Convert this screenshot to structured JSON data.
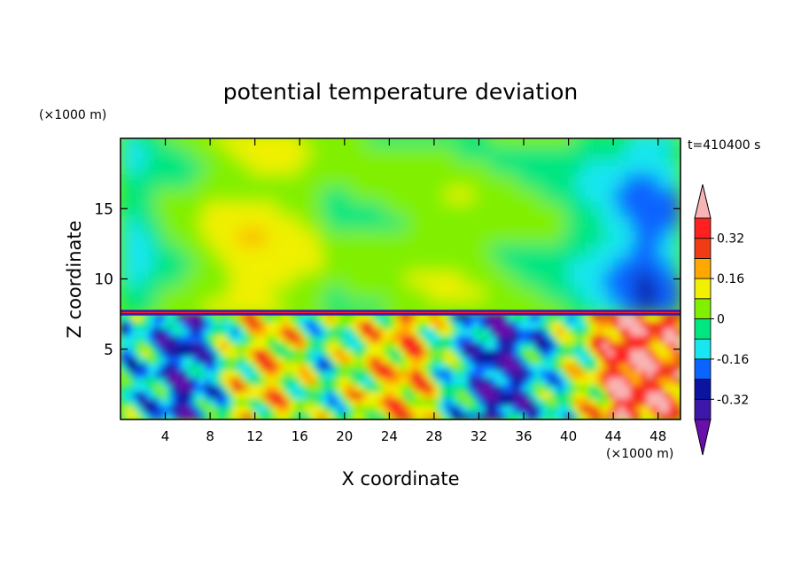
{
  "chart_data": {
    "type": "heatmap",
    "title": "potential temperature deviation",
    "xlabel": "X coordinate",
    "ylabel": "Z coordinate",
    "x_unit": "(×1000 m)",
    "y_unit": "(×1000 m)",
    "time_label": "t=410400 s",
    "xlim": [
      0,
      50
    ],
    "ylim": [
      0,
      20
    ],
    "x_ticks": [
      4,
      8,
      12,
      16,
      20,
      24,
      28,
      32,
      36,
      40,
      44,
      48
    ],
    "y_ticks": [
      5,
      10,
      15
    ],
    "colorbar": {
      "levels": [
        -0.4,
        -0.32,
        -0.24,
        -0.16,
        -0.08,
        0,
        0.08,
        0.16,
        0.24,
        0.32,
        0.4
      ],
      "labels": [
        "0.32",
        "0.16",
        "0",
        "-0.16",
        "-0.32"
      ],
      "label_values": [
        0.32,
        0.16,
        0,
        -0.16,
        -0.32
      ],
      "colors": [
        "#6a0dad",
        "#3b18a8",
        "#0a14a0",
        "#0a64ff",
        "#18e6f0",
        "#00e680",
        "#80f000",
        "#f0f000",
        "#ffa800",
        "#f03c14",
        "#ff2020",
        "#f8b4b4"
      ],
      "extend": "both"
    },
    "fields": {
      "upper_layer_mean_by_x": [
        {
          "x": 1,
          "value": -0.12
        },
        {
          "x": 4,
          "value": 0.0
        },
        {
          "x": 7,
          "value": 0.05
        },
        {
          "x": 11,
          "value": 0.15
        },
        {
          "x": 15,
          "value": 0.12
        },
        {
          "x": 19,
          "value": 0.02
        },
        {
          "x": 23,
          "value": 0.03
        },
        {
          "x": 27,
          "value": 0.05
        },
        {
          "x": 31,
          "value": 0.06
        },
        {
          "x": 35,
          "value": 0.02
        },
        {
          "x": 39,
          "value": -0.02
        },
        {
          "x": 43,
          "value": -0.12
        },
        {
          "x": 47,
          "value": -0.26
        },
        {
          "x": 49,
          "value": -0.18
        }
      ],
      "lower_layer_mean_by_x": [
        {
          "x": 2,
          "value": -0.1
        },
        {
          "x": 6,
          "value": -0.3
        },
        {
          "x": 10,
          "value": 0.05
        },
        {
          "x": 14,
          "value": 0.15
        },
        {
          "x": 18,
          "value": -0.05
        },
        {
          "x": 22,
          "value": 0.1
        },
        {
          "x": 26,
          "value": 0.2
        },
        {
          "x": 30,
          "value": -0.1
        },
        {
          "x": 34,
          "value": -0.32
        },
        {
          "x": 38,
          "value": -0.1
        },
        {
          "x": 42,
          "value": 0.1
        },
        {
          "x": 45,
          "value": 0.4
        },
        {
          "x": 48,
          "value": 0.3
        }
      ],
      "interface_height": 7.5
    }
  }
}
